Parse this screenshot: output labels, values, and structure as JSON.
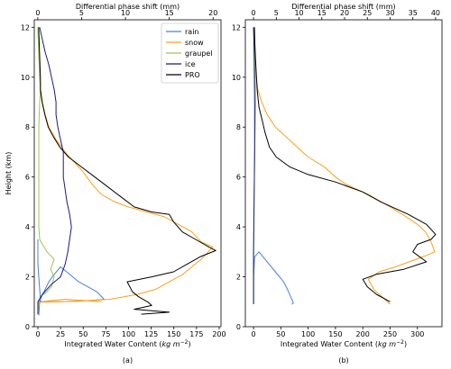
{
  "chart_data": [
    {
      "type": "line",
      "panel_label": "(a)",
      "xlabel": "Integrated Water Content",
      "xlabel_unit_main": "kg m",
      "xlabel_unit_exp": "−2",
      "x2label": "Differential phase shift (mm)",
      "ylabel": "Height (km)",
      "xlim": [
        -4,
        202
      ],
      "x2lim": [
        -0.4,
        20.9
      ],
      "ylim": [
        0,
        12.3
      ],
      "xticks": [
        0,
        25,
        50,
        75,
        100,
        125,
        150,
        175,
        200
      ],
      "x2ticks": [
        0,
        5,
        10,
        15,
        20
      ],
      "yticks": [
        0,
        2,
        4,
        6,
        8,
        10,
        12
      ],
      "legend": {
        "position": "top-right",
        "entries": [
          {
            "label": "rain",
            "color": "#4c7ee0"
          },
          {
            "label": "snow",
            "color": "#ff9f1a"
          },
          {
            "label": "graupel",
            "color": "#98c84a"
          },
          {
            "label": "ice",
            "color": "#1a1a80"
          },
          {
            "label": "PRO",
            "color": "#000000"
          }
        ]
      },
      "series": [
        {
          "name": "rain",
          "color": "#4c7ee0",
          "axis": "bottom",
          "points": [
            [
              1,
              0.45
            ],
            [
              2,
              1.0
            ],
            [
              4,
              1.2
            ],
            [
              8,
              1.5
            ],
            [
              12,
              1.8
            ],
            [
              18,
              2.1
            ],
            [
              25,
              2.4
            ],
            [
              35,
              2.1
            ],
            [
              45,
              1.8
            ],
            [
              55,
              1.6
            ],
            [
              65,
              1.4
            ],
            [
              73,
              1.1
            ],
            [
              60,
              1.05
            ],
            [
              40,
              1.02
            ],
            [
              20,
              1.0
            ],
            [
              3,
              1.0
            ],
            [
              0,
              2.5
            ],
            [
              0,
              3.5
            ]
          ]
        },
        {
          "name": "snow",
          "color": "#ff9f1a",
          "axis": "bottom",
          "points": [
            [
              70,
              1.0
            ],
            [
              50,
              1.05
            ],
            [
              30,
              1.1
            ],
            [
              15,
              1.05
            ],
            [
              5,
              1.0
            ],
            [
              2,
              0.98
            ],
            [
              40,
              1.02
            ],
            [
              80,
              1.1
            ],
            [
              110,
              1.3
            ],
            [
              130,
              1.5
            ],
            [
              145,
              1.8
            ],
            [
              160,
              2.1
            ],
            [
              170,
              2.4
            ],
            [
              180,
              2.7
            ],
            [
              188,
              3.0
            ],
            [
              193,
              3.2
            ],
            [
              180,
              3.4
            ],
            [
              175,
              3.6
            ],
            [
              170,
              3.8
            ],
            [
              160,
              4.0
            ],
            [
              150,
              4.2
            ],
            [
              140,
              4.4
            ],
            [
              120,
              4.6
            ],
            [
              100,
              4.8
            ],
            [
              85,
              5.0
            ],
            [
              70,
              5.3
            ],
            [
              60,
              5.7
            ],
            [
              50,
              6.2
            ],
            [
              40,
              6.6
            ],
            [
              30,
              7.0
            ],
            [
              20,
              7.5
            ],
            [
              12,
              8.0
            ],
            [
              8,
              8.5
            ],
            [
              5,
              9.0
            ],
            [
              3,
              9.5
            ],
            [
              2,
              10.0
            ],
            [
              1,
              11.0
            ],
            [
              0,
              12.0
            ]
          ]
        },
        {
          "name": "graupel",
          "color": "#98c84a",
          "axis": "bottom",
          "points": [
            [
              0,
              0.5
            ],
            [
              1,
              1.0
            ],
            [
              3,
              1.2
            ],
            [
              10,
              1.4
            ],
            [
              15,
              1.6
            ],
            [
              18,
              2.0
            ],
            [
              14,
              2.3
            ],
            [
              18,
              2.7
            ],
            [
              10,
              3.0
            ],
            [
              5,
              3.3
            ],
            [
              2,
              3.5
            ],
            [
              1,
              4.0
            ],
            [
              1,
              6.0
            ],
            [
              1,
              8.0
            ],
            [
              2,
              9.0
            ],
            [
              3,
              9.7
            ],
            [
              2,
              10.0
            ],
            [
              1,
              11.0
            ],
            [
              0,
              12.0
            ]
          ]
        },
        {
          "name": "ice",
          "color": "#1a1a80",
          "axis": "bottom",
          "points": [
            [
              0,
              0.5
            ],
            [
              0,
              1.0
            ],
            [
              5,
              1.3
            ],
            [
              15,
              1.7
            ],
            [
              25,
              2.0
            ],
            [
              30,
              2.5
            ],
            [
              33,
              3.0
            ],
            [
              35,
              3.5
            ],
            [
              37,
              4.0
            ],
            [
              35,
              4.5
            ],
            [
              32,
              5.0
            ],
            [
              30,
              5.5
            ],
            [
              28,
              6.0
            ],
            [
              28,
              6.5
            ],
            [
              28,
              7.0
            ],
            [
              25,
              7.5
            ],
            [
              22,
              8.0
            ],
            [
              20,
              8.5
            ],
            [
              20,
              9.0
            ],
            [
              18,
              9.5
            ],
            [
              15,
              10.0
            ],
            [
              12,
              10.5
            ],
            [
              8,
              11.0
            ],
            [
              5,
              11.5
            ],
            [
              2,
              12.0
            ]
          ]
        },
        {
          "name": "PRO",
          "color": "#000000",
          "axis": "top",
          "points": [
            [
              11.8,
              0.5
            ],
            [
              15,
              0.58
            ],
            [
              11,
              0.7
            ],
            [
              13,
              0.85
            ],
            [
              12.5,
              1.0
            ],
            [
              11.5,
              1.2
            ],
            [
              10.8,
              1.4
            ],
            [
              10.5,
              1.6
            ],
            [
              10.2,
              1.8
            ],
            [
              13,
              2.0
            ],
            [
              15.5,
              2.2
            ],
            [
              17.0,
              2.5
            ],
            [
              18.5,
              2.8
            ],
            [
              20.3,
              3.05
            ],
            [
              19.5,
              3.2
            ],
            [
              18.0,
              3.5
            ],
            [
              16.5,
              3.8
            ],
            [
              15.5,
              4.2
            ],
            [
              15,
              4.5
            ],
            [
              13,
              4.6
            ],
            [
              11,
              4.8
            ],
            [
              9.5,
              5.2
            ],
            [
              8,
              5.6
            ],
            [
              6.5,
              6.0
            ],
            [
              5,
              6.4
            ],
            [
              3.5,
              6.8
            ],
            [
              2.5,
              7.2
            ],
            [
              1.8,
              7.6
            ],
            [
              1.2,
              8.0
            ],
            [
              0.8,
              8.5
            ],
            [
              0.5,
              9.0
            ],
            [
              0.3,
              9.5
            ],
            [
              0.3,
              10.0
            ],
            [
              0.2,
              11.0
            ],
            [
              0.1,
              12.0
            ]
          ]
        }
      ]
    },
    {
      "type": "line",
      "panel_label": "(b)",
      "xlabel": "Integrated Water Content",
      "xlabel_unit_main": "kg m",
      "xlabel_unit_exp": "−2",
      "x2label": "Differential phase shift (mm)",
      "xlim": [
        -15,
        345
      ],
      "x2lim": [
        -1.8,
        41.4
      ],
      "ylim": [
        0,
        12.3
      ],
      "xticks": [
        0,
        50,
        100,
        150,
        200,
        250,
        300
      ],
      "x2ticks": [
        0,
        5,
        10,
        15,
        20,
        25,
        30,
        35,
        40
      ],
      "yticks": [
        0,
        2,
        4,
        6,
        8,
        10,
        12
      ],
      "series": [
        {
          "name": "rain",
          "color": "#4c7ee0",
          "axis": "bottom",
          "points": [
            [
              0,
              0.9
            ],
            [
              0,
              2.0
            ],
            [
              2,
              2.8
            ],
            [
              10,
              3.0
            ],
            [
              25,
              2.6
            ],
            [
              40,
              2.2
            ],
            [
              55,
              1.8
            ],
            [
              62,
              1.5
            ],
            [
              68,
              1.2
            ],
            [
              73,
              0.95
            ],
            [
              70,
              0.9
            ]
          ]
        },
        {
          "name": "snow",
          "color": "#ff9f1a",
          "axis": "bottom",
          "points": [
            [
              250,
              0.9
            ],
            [
              240,
              1.1
            ],
            [
              220,
              1.5
            ],
            [
              210,
              1.9
            ],
            [
              230,
              2.2
            ],
            [
              260,
              2.4
            ],
            [
              285,
              2.6
            ],
            [
              310,
              2.8
            ],
            [
              332,
              3.0
            ],
            [
              325,
              3.4
            ],
            [
              315,
              3.8
            ],
            [
              300,
              4.1
            ],
            [
              280,
              4.4
            ],
            [
              250,
              4.8
            ],
            [
              210,
              5.3
            ],
            [
              170,
              5.7
            ],
            [
              150,
              6.0
            ],
            [
              130,
              6.4
            ],
            [
              100,
              6.8
            ],
            [
              80,
              7.2
            ],
            [
              60,
              7.6
            ],
            [
              40,
              8.0
            ],
            [
              25,
              8.5
            ],
            [
              15,
              9.0
            ],
            [
              8,
              9.5
            ],
            [
              5,
              10.0
            ],
            [
              2,
              11.0
            ],
            [
              0,
              12.0
            ]
          ]
        },
        {
          "name": "graupel",
          "color": "#98c84a",
          "axis": "bottom",
          "points": [
            [
              0,
              0.9
            ],
            [
              0,
              3.0
            ],
            [
              1,
              5.0
            ],
            [
              2,
              7.0
            ],
            [
              3,
              8.0
            ],
            [
              4,
              9.0
            ],
            [
              3,
              10.0
            ],
            [
              2,
              11.0
            ],
            [
              0,
              12.0
            ]
          ]
        },
        {
          "name": "ice",
          "color": "#1a1a80",
          "axis": "bottom",
          "points": [
            [
              0,
              0.9
            ],
            [
              0,
              3.0
            ],
            [
              1,
              5.0
            ],
            [
              2,
              7.0
            ],
            [
              2,
              9.0
            ],
            [
              1,
              11.0
            ],
            [
              0,
              12.0
            ]
          ]
        },
        {
          "name": "PRO",
          "color": "#000000",
          "axis": "top",
          "points": [
            [
              30,
              1.0
            ],
            [
              27,
              1.3
            ],
            [
              25,
              1.6
            ],
            [
              24,
              1.9
            ],
            [
              27,
              2.1
            ],
            [
              33,
              2.3
            ],
            [
              38,
              2.6
            ],
            [
              35,
              3.0
            ],
            [
              36,
              3.3
            ],
            [
              39,
              3.5
            ],
            [
              40,
              3.7
            ],
            [
              38,
              4.1
            ],
            [
              34,
              4.5
            ],
            [
              28,
              5.0
            ],
            [
              24,
              5.4
            ],
            [
              18,
              5.8
            ],
            [
              12,
              6.1
            ],
            [
              8,
              6.4
            ],
            [
              5,
              6.8
            ],
            [
              3.5,
              7.2
            ],
            [
              2.5,
              7.8
            ],
            [
              2,
              8.2
            ],
            [
              1.2,
              8.8
            ],
            [
              0.8,
              9.5
            ],
            [
              0.5,
              10.5
            ],
            [
              0.3,
              11.3
            ],
            [
              0.2,
              12.0
            ]
          ]
        }
      ]
    }
  ]
}
